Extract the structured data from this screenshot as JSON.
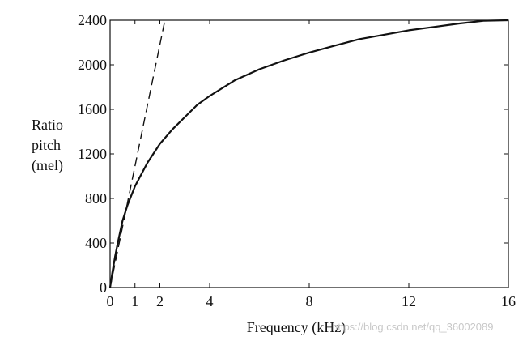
{
  "chart_data": {
    "type": "line",
    "title": "",
    "xlabel": "Frequency (kHz)",
    "ylabel": [
      "Ratio",
      "pitch",
      "(mel)"
    ],
    "xlim": [
      0,
      16
    ],
    "ylim": [
      0,
      2400
    ],
    "x_ticks": [
      0,
      1,
      2,
      4,
      8,
      12,
      16
    ],
    "y_ticks": [
      0,
      400,
      800,
      1200,
      1600,
      2000,
      2400
    ],
    "grid": false,
    "series": [
      {
        "style": "solid",
        "color": "#111111",
        "x": [
          0,
          0.1,
          0.2,
          0.3,
          0.5,
          0.7,
          1,
          1.5,
          2,
          2.5,
          3,
          3.5,
          4,
          5,
          6,
          7,
          8,
          9,
          10,
          11,
          12,
          13,
          14,
          15,
          16
        ],
        "y": [
          0,
          150,
          280,
          390,
          600,
          740,
          910,
          1120,
          1290,
          1420,
          1530,
          1640,
          1720,
          1860,
          1960,
          2040,
          2110,
          2170,
          2230,
          2270,
          2310,
          2340,
          2370,
          2395,
          2400
        ]
      },
      {
        "style": "dashed",
        "color": "#111111",
        "x": [
          0,
          2.2
        ],
        "y": [
          0,
          2400
        ]
      }
    ]
  },
  "watermark": "https://blog.csdn.net/qq_36002089"
}
